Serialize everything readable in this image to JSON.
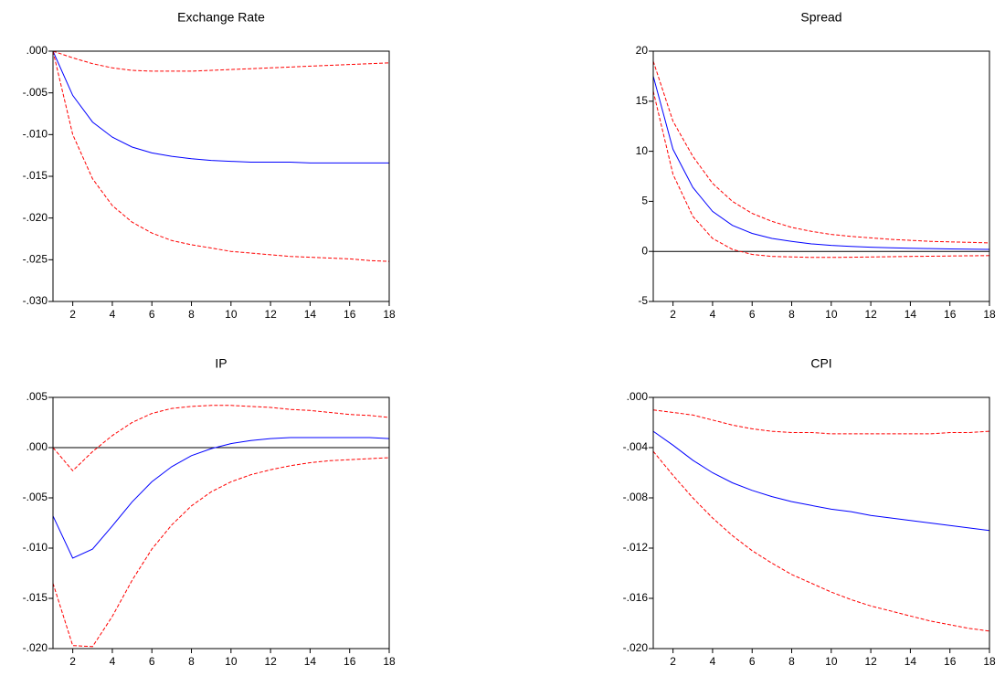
{
  "chart_data": [
    {
      "type": "line",
      "title": "Exchange Rate",
      "x": [
        1,
        2,
        3,
        4,
        5,
        6,
        7,
        8,
        9,
        10,
        11,
        12,
        13,
        14,
        15,
        16,
        17,
        18
      ],
      "xlim": [
        1,
        18
      ],
      "xticks": [
        2,
        4,
        6,
        8,
        10,
        12,
        14,
        16,
        18
      ],
      "ylim": [
        -0.03,
        0
      ],
      "yticks": [
        {
          "value": 0,
          "label": ".000"
        },
        {
          "value": -0.005,
          "label": "-.005"
        },
        {
          "value": -0.01,
          "label": "-.010"
        },
        {
          "value": -0.015,
          "label": "-.015"
        },
        {
          "value": -0.02,
          "label": "-.020"
        },
        {
          "value": -0.025,
          "label": "-.025"
        },
        {
          "value": -0.03,
          "label": "-.030"
        }
      ],
      "zero_line": false,
      "series": [
        {
          "color": "#0000ff",
          "dash": false,
          "values": [
            0,
            -0.0053,
            -0.0085,
            -0.0103,
            -0.0115,
            -0.0122,
            -0.0126,
            -0.0129,
            -0.0131,
            -0.0132,
            -0.0133,
            -0.0133,
            -0.0133,
            -0.0134,
            -0.0134,
            -0.0134,
            -0.0134,
            -0.0134
          ]
        },
        {
          "color": "#ff0000",
          "dash": true,
          "values": [
            0,
            -0.0008,
            -0.0015,
            -0.002,
            -0.0023,
            -0.0024,
            -0.0024,
            -0.0024,
            -0.0023,
            -0.0022,
            -0.0021,
            -0.002,
            -0.0019,
            -0.0018,
            -0.0017,
            -0.0016,
            -0.0015,
            -0.0014
          ]
        },
        {
          "color": "#ff0000",
          "dash": true,
          "values": [
            0,
            -0.01,
            -0.0153,
            -0.0185,
            -0.0205,
            -0.0218,
            -0.0227,
            -0.0232,
            -0.0236,
            -0.024,
            -0.0242,
            -0.0244,
            -0.0246,
            -0.0247,
            -0.0248,
            -0.0249,
            -0.0251,
            -0.0252
          ]
        }
      ]
    },
    {
      "type": "line",
      "title": "Spread",
      "x": [
        1,
        2,
        3,
        4,
        5,
        6,
        7,
        8,
        9,
        10,
        11,
        12,
        13,
        14,
        15,
        16,
        17,
        18
      ],
      "xlim": [
        1,
        18
      ],
      "xticks": [
        2,
        4,
        6,
        8,
        10,
        12,
        14,
        16,
        18
      ],
      "ylim": [
        -5,
        20
      ],
      "yticks": [
        20,
        15,
        10,
        5,
        0,
        -5
      ],
      "zero_line": true,
      "series": [
        {
          "color": "#0000ff",
          "dash": false,
          "values": [
            17.5,
            10.2,
            6.4,
            4.0,
            2.6,
            1.8,
            1.3,
            1.0,
            0.75,
            0.6,
            0.5,
            0.42,
            0.36,
            0.32,
            0.28,
            0.25,
            0.22,
            0.2
          ]
        },
        {
          "color": "#ff0000",
          "dash": true,
          "values": [
            19,
            13,
            9.5,
            6.8,
            5.0,
            3.8,
            3.0,
            2.4,
            2.0,
            1.7,
            1.5,
            1.35,
            1.2,
            1.1,
            1.0,
            0.95,
            0.9,
            0.85
          ]
        },
        {
          "color": "#ff0000",
          "dash": true,
          "values": [
            16,
            7.7,
            3.5,
            1.3,
            0.2,
            -0.3,
            -0.5,
            -0.55,
            -0.6,
            -0.6,
            -0.58,
            -0.56,
            -0.53,
            -0.5,
            -0.48,
            -0.46,
            -0.44,
            -0.42
          ]
        }
      ]
    },
    {
      "type": "line",
      "title": "IP",
      "x": [
        1,
        2,
        3,
        4,
        5,
        6,
        7,
        8,
        9,
        10,
        11,
        12,
        13,
        14,
        15,
        16,
        17,
        18
      ],
      "xlim": [
        1,
        18
      ],
      "xticks": [
        2,
        4,
        6,
        8,
        10,
        12,
        14,
        16,
        18
      ],
      "ylim": [
        -0.02,
        0.005
      ],
      "yticks": [
        {
          "value": 0.005,
          "label": ".005"
        },
        {
          "value": 0,
          "label": ".000"
        },
        {
          "value": -0.005,
          "label": "-.005"
        },
        {
          "value": -0.01,
          "label": "-.010"
        },
        {
          "value": -0.015,
          "label": "-.015"
        },
        {
          "value": -0.02,
          "label": "-.020"
        }
      ],
      "zero_line": true,
      "series": [
        {
          "color": "#0000ff",
          "dash": false,
          "values": [
            -0.0068,
            -0.011,
            -0.0101,
            -0.0078,
            -0.0054,
            -0.0034,
            -0.0019,
            -0.0008,
            -0.0001,
            0.0004,
            0.0007,
            0.0009,
            0.001,
            0.001,
            0.001,
            0.001,
            0.001,
            0.0009
          ]
        },
        {
          "color": "#ff0000",
          "dash": true,
          "values": [
            0,
            -0.0023,
            -0.0004,
            0.0012,
            0.0025,
            0.0034,
            0.0039,
            0.0041,
            0.0042,
            0.0042,
            0.0041,
            0.004,
            0.0038,
            0.0037,
            0.0035,
            0.0033,
            0.0032,
            0.003
          ]
        },
        {
          "color": "#ff0000",
          "dash": true,
          "values": [
            -0.0135,
            -0.0197,
            -0.0198,
            -0.0168,
            -0.0132,
            -0.0101,
            -0.0077,
            -0.0058,
            -0.0044,
            -0.0034,
            -0.0027,
            -0.0022,
            -0.0018,
            -0.0015,
            -0.0013,
            -0.0012,
            -0.0011,
            -0.001
          ]
        }
      ]
    },
    {
      "type": "line",
      "title": "CPI",
      "x": [
        1,
        2,
        3,
        4,
        5,
        6,
        7,
        8,
        9,
        10,
        11,
        12,
        13,
        14,
        15,
        16,
        17,
        18
      ],
      "xlim": [
        1,
        18
      ],
      "xticks": [
        2,
        4,
        6,
        8,
        10,
        12,
        14,
        16,
        18
      ],
      "ylim": [
        -0.02,
        0
      ],
      "yticks": [
        {
          "value": 0,
          "label": ".000"
        },
        {
          "value": -0.004,
          "label": "-.004"
        },
        {
          "value": -0.008,
          "label": "-.008"
        },
        {
          "value": -0.012,
          "label": "-.012"
        },
        {
          "value": -0.016,
          "label": "-.016"
        },
        {
          "value": -0.02,
          "label": "-.020"
        }
      ],
      "zero_line": false,
      "series": [
        {
          "color": "#0000ff",
          "dash": false,
          "values": [
            -0.0027,
            -0.0038,
            -0.005,
            -0.006,
            -0.0068,
            -0.0074,
            -0.0079,
            -0.0083,
            -0.0086,
            -0.0089,
            -0.0091,
            -0.0094,
            -0.0096,
            -0.0098,
            -0.01,
            -0.0102,
            -0.0104,
            -0.0106
          ]
        },
        {
          "color": "#ff0000",
          "dash": true,
          "values": [
            -0.001,
            -0.0012,
            -0.0014,
            -0.0018,
            -0.0022,
            -0.0025,
            -0.0027,
            -0.0028,
            -0.0028,
            -0.0029,
            -0.0029,
            -0.0029,
            -0.0029,
            -0.0029,
            -0.0029,
            -0.0028,
            -0.0028,
            -0.0027
          ]
        },
        {
          "color": "#ff0000",
          "dash": true,
          "values": [
            -0.0043,
            -0.0062,
            -0.008,
            -0.0096,
            -0.011,
            -0.0122,
            -0.0132,
            -0.0141,
            -0.0148,
            -0.0155,
            -0.0161,
            -0.0166,
            -0.017,
            -0.0174,
            -0.0178,
            -0.0181,
            -0.0184,
            -0.0186
          ]
        }
      ]
    }
  ]
}
